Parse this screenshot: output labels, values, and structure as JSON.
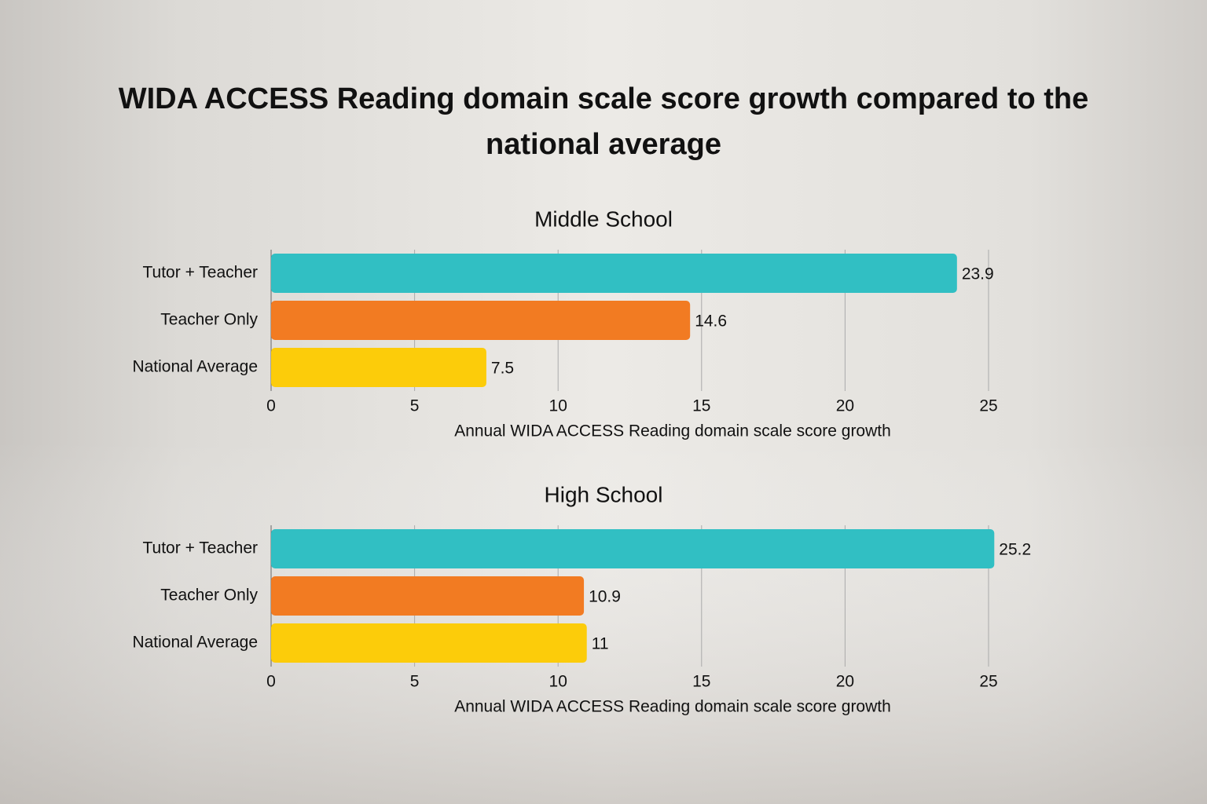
{
  "title": "WIDA ACCESS Reading domain scale score growth compared to the national average",
  "chart_data": [
    {
      "type": "bar",
      "title": "Middle School",
      "categories": [
        "Tutor + Teacher",
        "Teacher Only",
        "National Average"
      ],
      "values": [
        23.9,
        14.6,
        7.5
      ],
      "colors": [
        "#31bfc3",
        "#f27b22",
        "#fccc0a"
      ],
      "xlabel": "Annual WIDA ACCESS Reading domain scale score growth",
      "xlim": [
        0,
        25
      ],
      "xticks": [
        0,
        5,
        10,
        15,
        20,
        25
      ],
      "grid": true
    },
    {
      "type": "bar",
      "title": "High School",
      "categories": [
        "Tutor + Teacher",
        "Teacher Only",
        "National Average"
      ],
      "values": [
        25.2,
        10.9,
        11
      ],
      "colors": [
        "#31bfc3",
        "#f27b22",
        "#fccc0a"
      ],
      "xlabel": "Annual WIDA ACCESS Reading domain scale score growth",
      "xlim": [
        0,
        25
      ],
      "xticks": [
        0,
        5,
        10,
        15,
        20,
        25
      ],
      "grid": true
    }
  ]
}
